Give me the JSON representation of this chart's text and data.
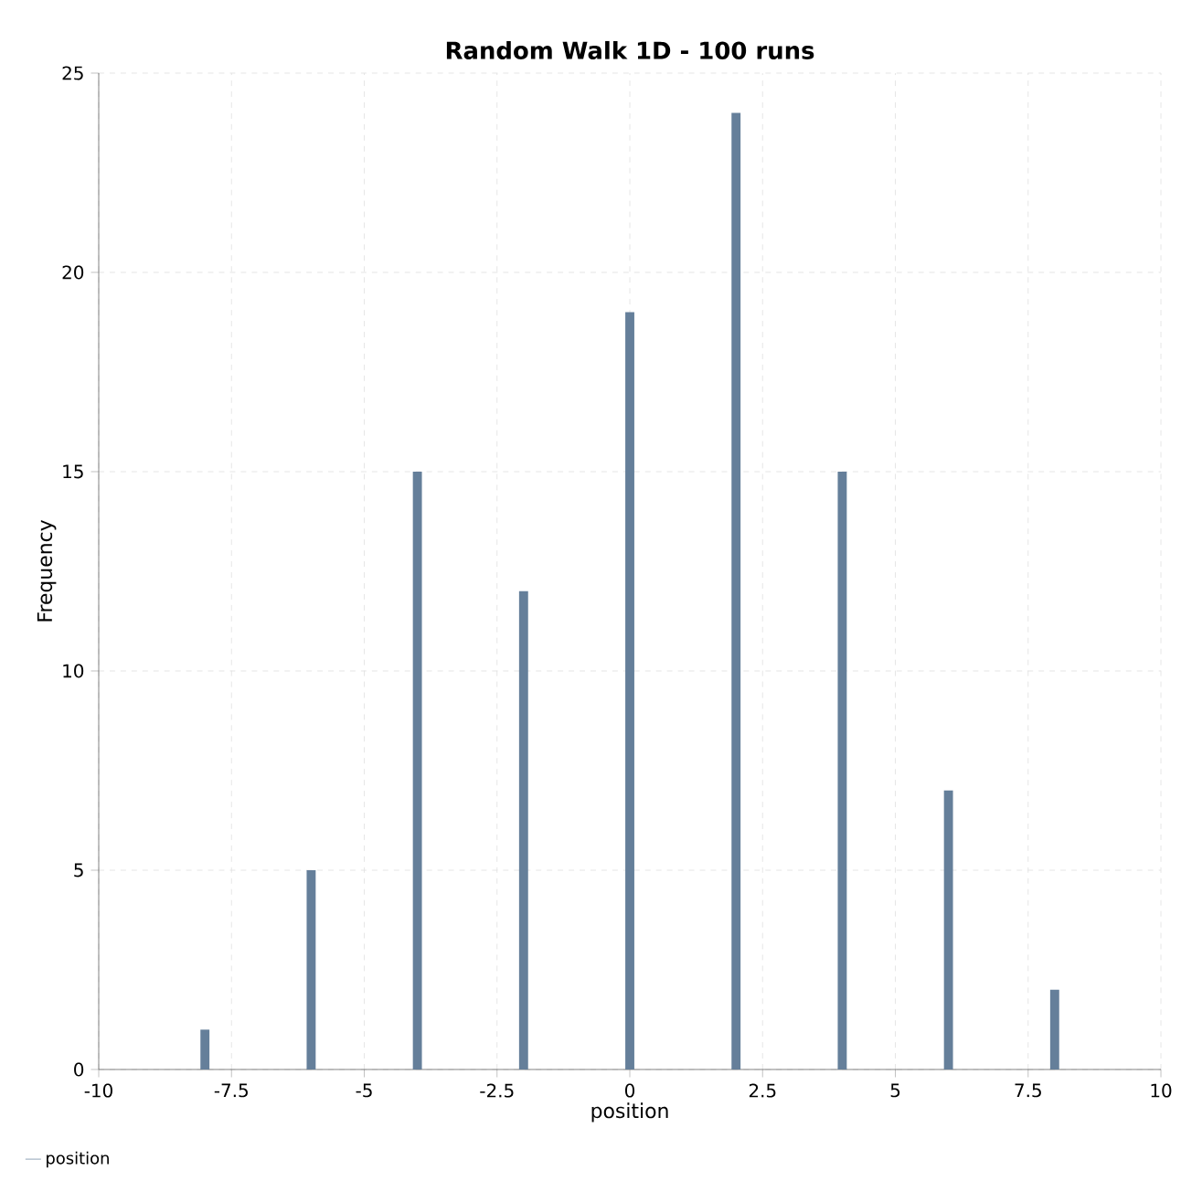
{
  "chart_data": {
    "type": "bar",
    "title": "Random Walk 1D - 100 runs",
    "xlabel": "position",
    "ylabel": "Frequency",
    "x": [
      -8,
      -6,
      -4,
      -2,
      0,
      2,
      4,
      6,
      8
    ],
    "series": [
      {
        "name": "position",
        "color": "#657f9a",
        "values": [
          1,
          5,
          15,
          12,
          19,
          24,
          15,
          7,
          2
        ]
      }
    ],
    "xlim": [
      -10,
      10
    ],
    "xticks": [
      -10,
      -7.5,
      -5,
      -2.5,
      0,
      2.5,
      5,
      7.5,
      10
    ],
    "ylim": [
      0,
      25
    ],
    "yticks": [
      0,
      5,
      10,
      15,
      20,
      25
    ],
    "grid": true,
    "legend": "bottom left"
  }
}
